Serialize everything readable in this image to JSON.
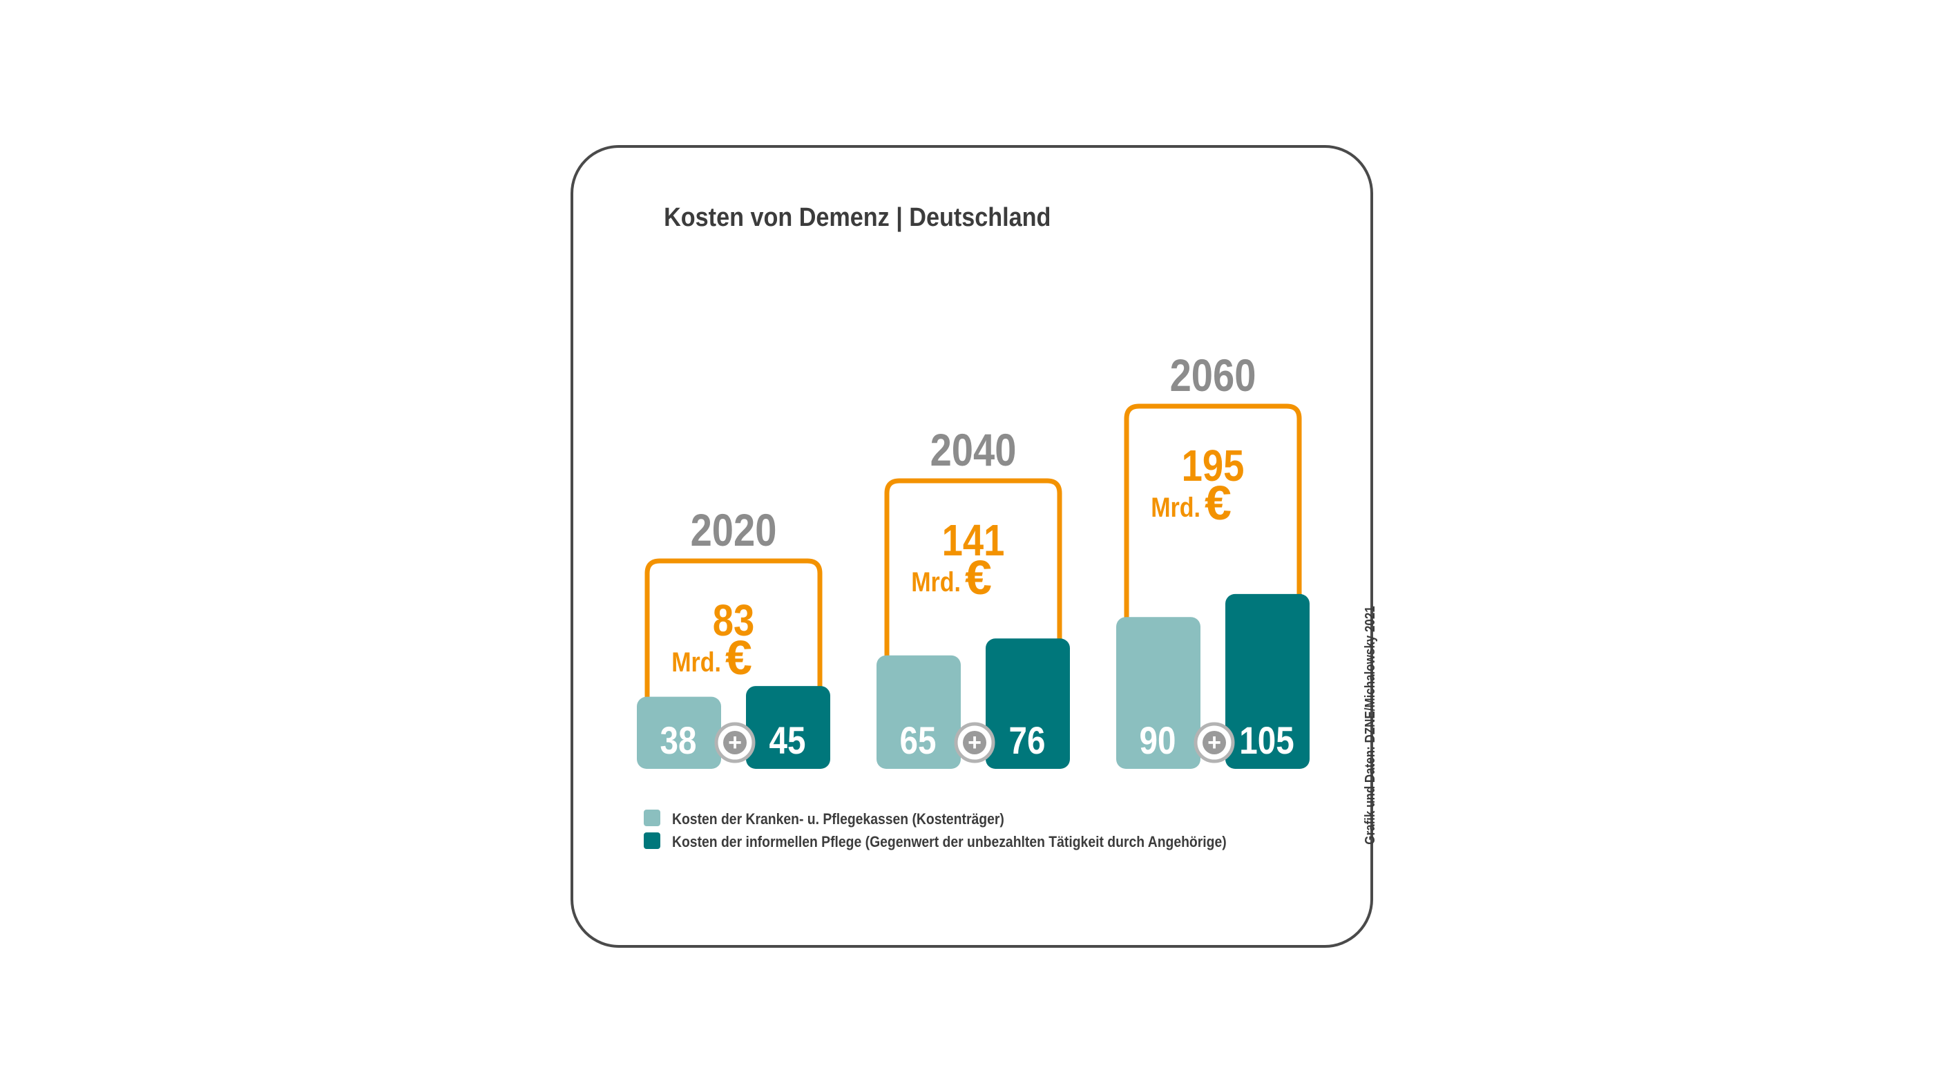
{
  "chart_data": {
    "type": "bar",
    "title": "Kosten von Demenz | Deutschland",
    "categories": [
      "2020",
      "2040",
      "2060"
    ],
    "series": [
      {
        "name": "Kosten der Kranken- u. Pflegekassen (Kostenträger)",
        "values": [
          38,
          65,
          90
        ],
        "color": "#8bbfbf"
      },
      {
        "name": "Kosten der informellen Pflege (Gegenwert der unbezahlten Tätigkeit durch Angehörige)",
        "values": [
          45,
          76,
          105
        ],
        "color": "#00777b"
      }
    ],
    "totals": [
      83,
      141,
      195
    ],
    "total_unit": "Mrd.",
    "currency_symbol": "€",
    "plus_symbol": "+",
    "total_color": "#f39200",
    "year_label_color": "#8c8c8c",
    "source": "Grafik und Daten: DZNE/Michalowsky 2021",
    "legend_position": "bottom-left"
  }
}
